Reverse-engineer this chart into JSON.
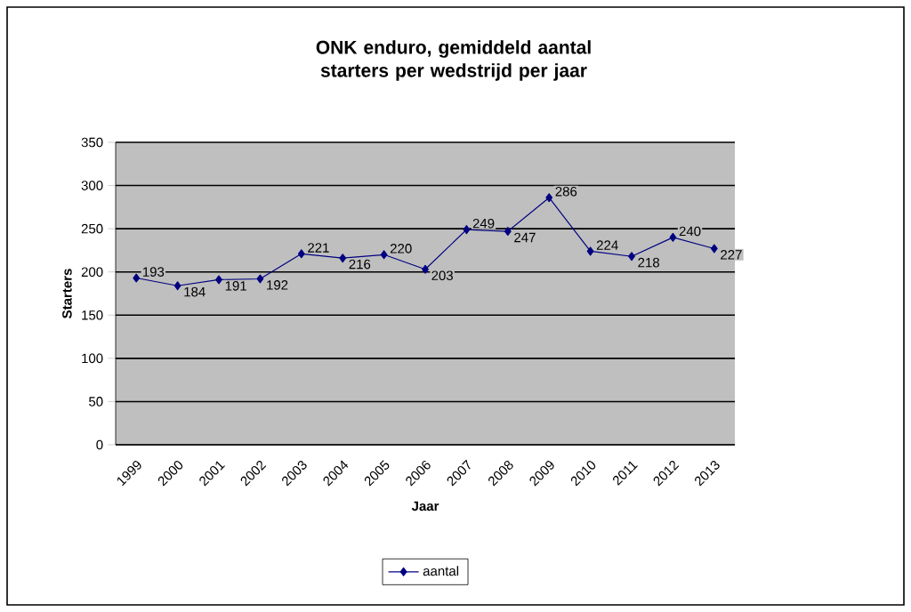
{
  "chart_data": {
    "type": "line",
    "title": "ONK enduro, gemiddeld aantal starters per wedstrijd per jaar",
    "xlabel": "Jaar",
    "ylabel": "Starters",
    "categories": [
      "1999",
      "2000",
      "2001",
      "2002",
      "2003",
      "2004",
      "2005",
      "2006",
      "2007",
      "2008",
      "2009",
      "2010",
      "2011",
      "2012",
      "2013"
    ],
    "series": [
      {
        "name": "aantal",
        "color": "#000080",
        "values": [
          193,
          184,
          191,
          192,
          221,
          216,
          220,
          203,
          249,
          247,
          286,
          224,
          218,
          240,
          227
        ]
      }
    ],
    "ylim": [
      0,
      350
    ],
    "yticks": [
      0,
      50,
      100,
      150,
      200,
      250,
      300,
      350
    ],
    "grid": "y",
    "legend": "bottom",
    "marker": "diamond",
    "line_style": "solid",
    "data_labels": true
  }
}
